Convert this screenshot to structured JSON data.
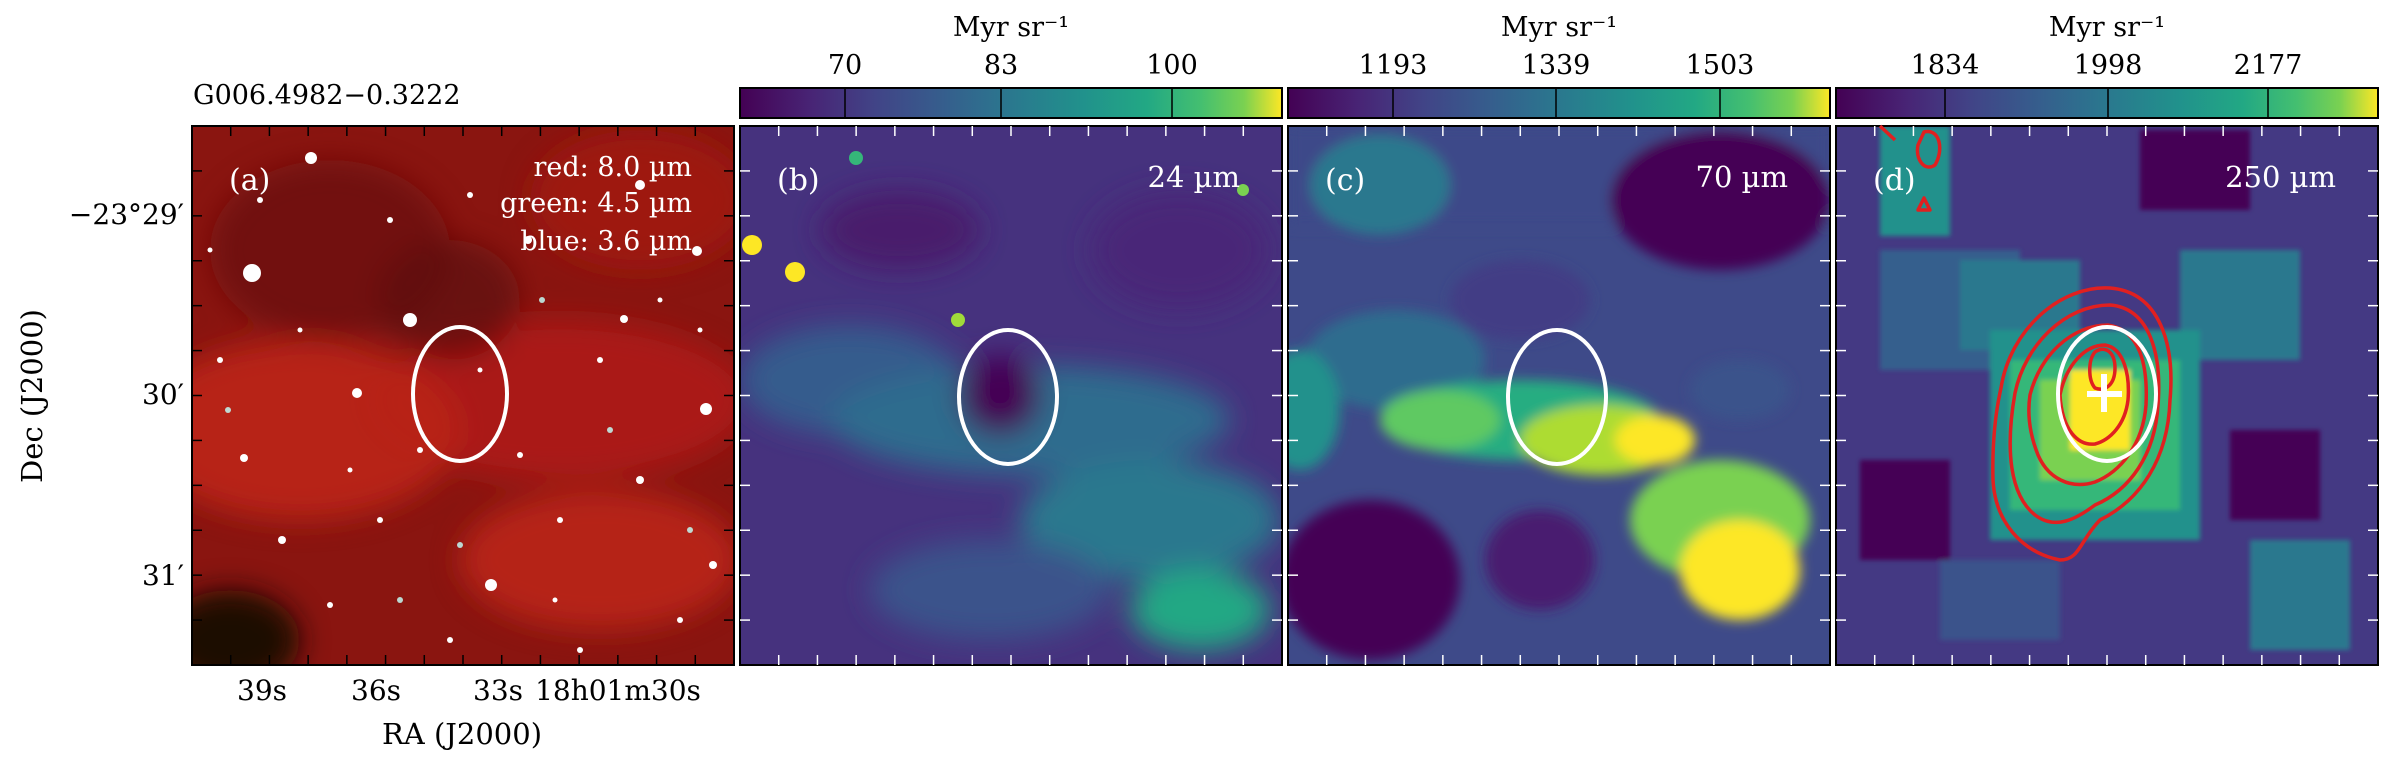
{
  "figure": {
    "source_name": "G006.4982−0.3222",
    "ra_axis_label": "RA (J2000)",
    "dec_axis_label": "Dec (J2000)",
    "ra_tick_labels": [
      "39s",
      "36s",
      "33s",
      "18h01m30s"
    ],
    "dec_tick_labels": [
      "−23°29′",
      "30′",
      "31′"
    ]
  },
  "panels": [
    {
      "id": "a",
      "letter": "(a)",
      "kind": "rgb",
      "legend_lines": [
        "red: 8.0 µm",
        "green: 4.5 µm",
        "blue: 3.6 µm"
      ]
    },
    {
      "id": "b",
      "letter": "(b)",
      "kind": "map",
      "band_label": "24 µm",
      "colorbar": {
        "unit": "Myr sr⁻¹",
        "ticks": [
          "70",
          "83",
          "100"
        ]
      }
    },
    {
      "id": "c",
      "letter": "(c)",
      "kind": "map",
      "band_label": "70 µm",
      "colorbar": {
        "unit": "Myr sr⁻¹",
        "ticks": [
          "1193",
          "1339",
          "1503"
        ]
      }
    },
    {
      "id": "d",
      "letter": "(d)",
      "kind": "map",
      "band_label": "250 µm",
      "colorbar": {
        "unit": "Myr sr⁻¹",
        "ticks": [
          "1834",
          "1998",
          "2177"
        ]
      },
      "contours": "red",
      "marker": "white cross"
    }
  ],
  "colors": {
    "ellipse": "#ffffff",
    "contour": "#e02020",
    "colormap": "viridis"
  }
}
